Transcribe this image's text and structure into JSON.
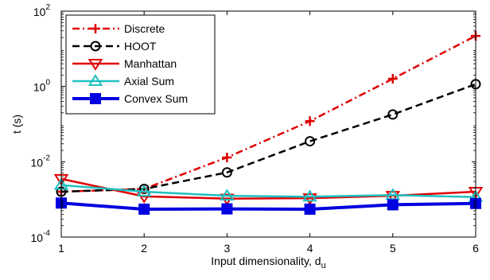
{
  "chart_data": {
    "type": "line",
    "title": "",
    "xlabel": "Input dimensionality, d",
    "xlabel_subscript": "u",
    "ylabel": "t (s)",
    "x": [
      1,
      2,
      3,
      4,
      5,
      6
    ],
    "xlim": [
      1,
      6
    ],
    "ylim": [
      0.0001,
      100
    ],
    "yscale": "log",
    "grid": false,
    "legend_position": "top-left",
    "x_ticks": [
      "1",
      "2",
      "3",
      "4",
      "5",
      "6"
    ],
    "y_ticks": [
      {
        "value": 0.0001,
        "base": "10",
        "exp": "-4"
      },
      {
        "value": 0.01,
        "base": "10",
        "exp": "-2"
      },
      {
        "value": 1,
        "base": "10",
        "exp": "0"
      },
      {
        "value": 100,
        "base": "10",
        "exp": "2"
      }
    ],
    "series": [
      {
        "name": "Discrete",
        "color": "#e00000",
        "dash": "dashdot",
        "marker": "plus",
        "values": [
          0.0016,
          0.0019,
          0.013,
          0.12,
          1.6,
          22
        ]
      },
      {
        "name": "HOOT",
        "color": "#000000",
        "dash": "dashed",
        "marker": "circle",
        "values": [
          0.0016,
          0.0019,
          0.0052,
          0.035,
          0.18,
          1.15
        ]
      },
      {
        "name": "Manhattan",
        "color": "#e00000",
        "dash": "solid",
        "marker": "triangle-down",
        "values": [
          0.0035,
          0.0012,
          0.00105,
          0.00108,
          0.00125,
          0.0016
        ]
      },
      {
        "name": "Axial Sum",
        "color": "#20c0c0",
        "dash": "solid",
        "marker": "triangle-up",
        "values": [
          0.0024,
          0.0016,
          0.00125,
          0.00118,
          0.0013,
          0.00115
        ]
      },
      {
        "name": "Convex Sum",
        "color": "#0000e0",
        "dash": "solid",
        "marker": "square",
        "values": [
          0.0008,
          0.00055,
          0.00056,
          0.00055,
          0.00072,
          0.00078
        ]
      }
    ]
  }
}
